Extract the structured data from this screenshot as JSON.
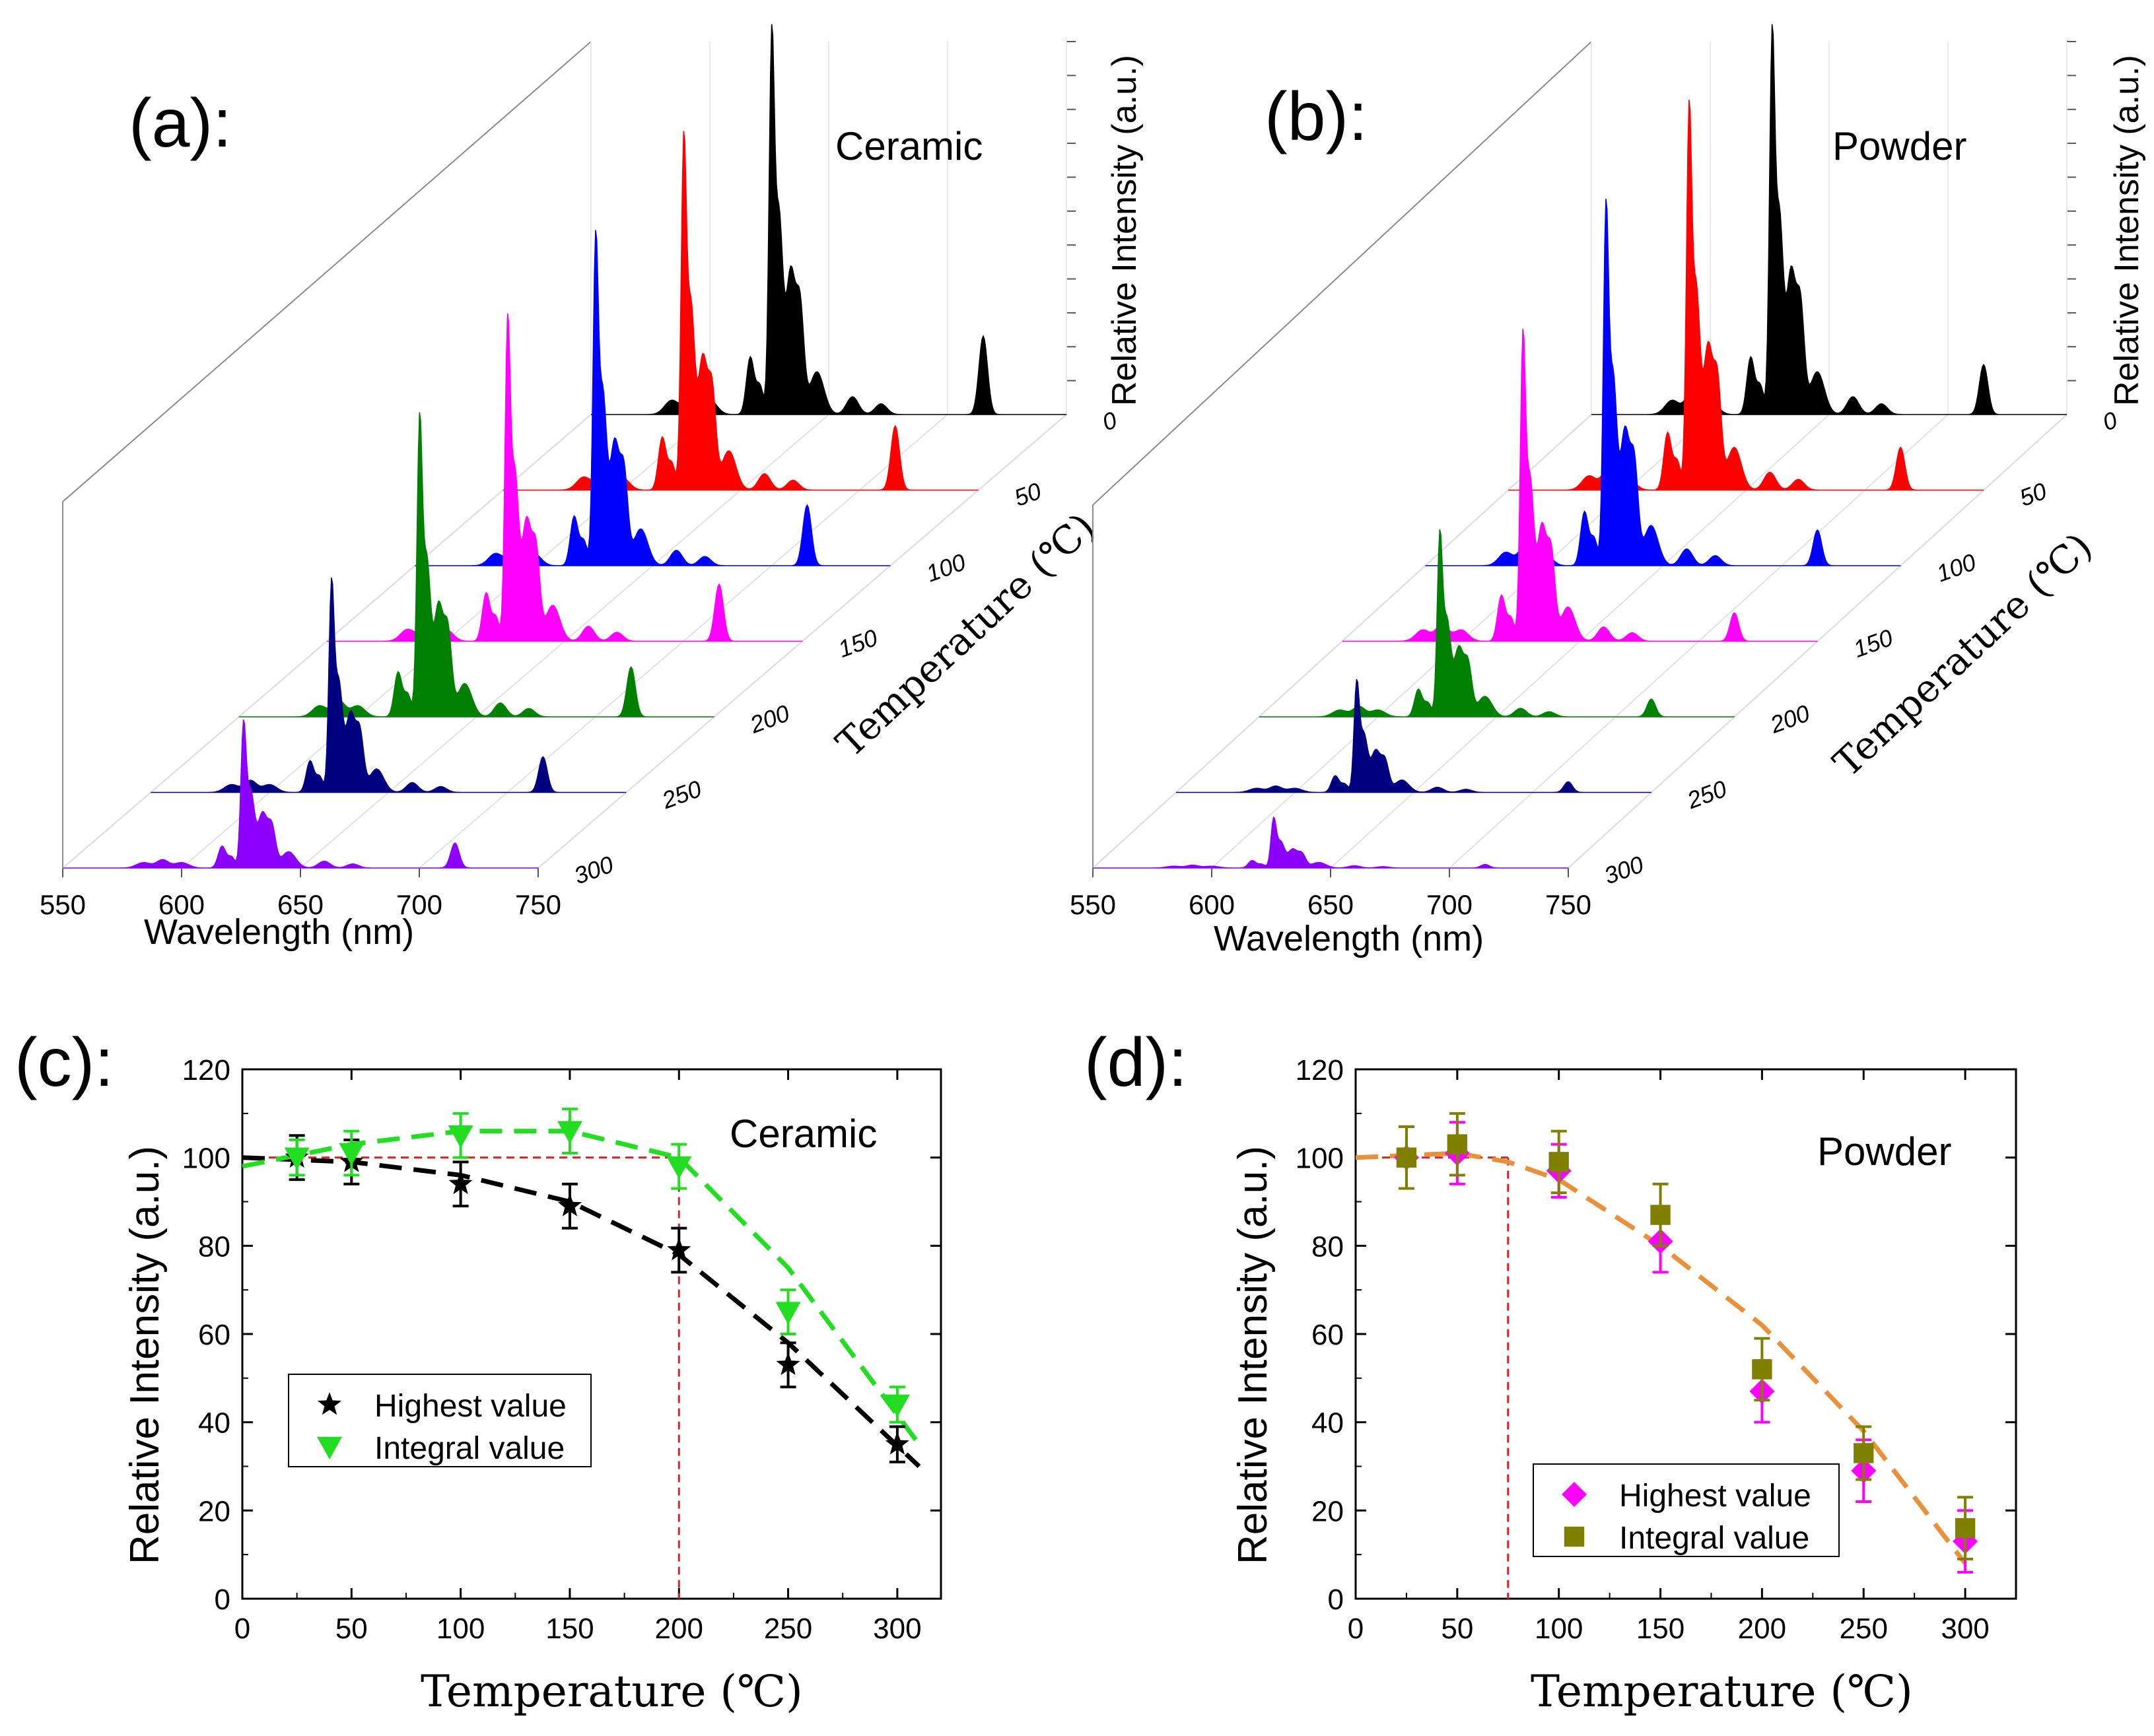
{
  "chart_data": [
    {
      "id": "a",
      "type": "waterfall-area",
      "panel_label": "(a):",
      "title": "Ceramic",
      "xlabel": "Wavelength (nm)",
      "ylabel": "Temperature (℃)",
      "zlabel": "Relative Intensity (a.u.)",
      "x_ticks": [
        "550",
        "600",
        "650",
        "700",
        "750"
      ],
      "xlim": [
        550,
        750
      ],
      "y_ticks": [
        "0",
        "50",
        "100",
        "150",
        "200",
        "250",
        "300"
      ],
      "series": [
        {
          "temperature": 25,
          "color": "#000000",
          "main_peak": 1.0,
          "integral_scale": 1.0,
          "red_peak": 0.22
        },
        {
          "temperature": 50,
          "color": "#ff0000",
          "main_peak": 0.92,
          "integral_scale": 0.98,
          "red_peak": 0.18
        },
        {
          "temperature": 100,
          "color": "#0000ff",
          "main_peak": 0.86,
          "integral_scale": 0.95,
          "red_peak": 0.17
        },
        {
          "temperature": 150,
          "color": "#ff00ff",
          "main_peak": 0.84,
          "integral_scale": 0.96,
          "red_peak": 0.16
        },
        {
          "temperature": 200,
          "color": "#008000",
          "main_peak": 0.78,
          "integral_scale": 0.88,
          "red_peak": 0.14
        },
        {
          "temperature": 250,
          "color": "#000080",
          "main_peak": 0.55,
          "integral_scale": 0.62,
          "red_peak": 0.1
        },
        {
          "temperature": 300,
          "color": "#8b00ff",
          "main_peak": 0.38,
          "integral_scale": 0.42,
          "red_peak": 0.07
        }
      ]
    },
    {
      "id": "b",
      "type": "waterfall-area",
      "panel_label": "(b):",
      "title": "Powder",
      "xlabel": "Wavelength (nm)",
      "ylabel": "Temperature (℃)",
      "zlabel": "Relative Intensity (a.u.)",
      "x_ticks": [
        "550",
        "600",
        "650",
        "700",
        "750"
      ],
      "xlim": [
        550,
        750
      ],
      "y_ticks": [
        "0",
        "50",
        "100",
        "150",
        "200",
        "250",
        "300"
      ],
      "series": [
        {
          "temperature": 25,
          "color": "#000000",
          "main_peak": 1.0,
          "integral_scale": 1.0,
          "red_peak": 0.14
        },
        {
          "temperature": 50,
          "color": "#ff0000",
          "main_peak": 1.0,
          "integral_scale": 1.0,
          "red_peak": 0.12
        },
        {
          "temperature": 100,
          "color": "#0000ff",
          "main_peak": 0.94,
          "integral_scale": 0.98,
          "red_peak": 0.1
        },
        {
          "temperature": 150,
          "color": "#ff00ff",
          "main_peak": 0.8,
          "integral_scale": 0.86,
          "red_peak": 0.08
        },
        {
          "temperature": 200,
          "color": "#008000",
          "main_peak": 0.48,
          "integral_scale": 0.52,
          "red_peak": 0.05
        },
        {
          "temperature": 250,
          "color": "#000080",
          "main_peak": 0.29,
          "integral_scale": 0.32,
          "red_peak": 0.03
        },
        {
          "temperature": 300,
          "color": "#8b00ff",
          "main_peak": 0.13,
          "integral_scale": 0.16,
          "red_peak": 0.01
        }
      ]
    },
    {
      "id": "c",
      "type": "scatter",
      "panel_label": "(c):",
      "title": "Ceramic",
      "xlabel": "Temperature (℃)",
      "ylabel": "Relative Intensity (a.u.)",
      "xlim": [
        0,
        320
      ],
      "ylim": [
        0,
        120
      ],
      "x_ticks": [
        "0",
        "50",
        "100",
        "150",
        "200",
        "250",
        "300"
      ],
      "y_ticks": [
        "0",
        "20",
        "40",
        "60",
        "80",
        "100",
        "120"
      ],
      "legend_position": "lower-left",
      "reference": {
        "y": 100,
        "x": 200
      },
      "series": [
        {
          "name": "Highest value",
          "marker": "star",
          "color": "#000000",
          "x": [
            25,
            50,
            100,
            150,
            200,
            250,
            300
          ],
          "y": [
            100,
            99,
            94,
            89,
            79,
            53,
            35
          ],
          "err": [
            5,
            5,
            5,
            5,
            5,
            5,
            4
          ],
          "fit_x": [
            0,
            50,
            100,
            150,
            200,
            250,
            310
          ],
          "fit_y": [
            100,
            99,
            96,
            90,
            78,
            58,
            30
          ]
        },
        {
          "name": "Integral value",
          "marker": "triangle-down",
          "color": "#22dd22",
          "x": [
            25,
            50,
            100,
            150,
            200,
            250,
            300
          ],
          "y": [
            100,
            101,
            105,
            106,
            98,
            65,
            44
          ],
          "err": [
            4,
            5,
            5,
            5,
            5,
            5,
            4
          ],
          "fit_x": [
            0,
            50,
            100,
            150,
            200,
            250,
            310
          ],
          "fit_y": [
            98,
            103,
            106,
            106,
            100,
            75,
            35
          ]
        }
      ]
    },
    {
      "id": "d",
      "type": "scatter",
      "panel_label": "(d):",
      "title": "Powder",
      "xlabel": "Temperature (℃)",
      "ylabel": "Relative Intensity (a.u.)",
      "xlim": [
        0,
        325
      ],
      "ylim": [
        0,
        120
      ],
      "x_ticks": [
        "0",
        "50",
        "100",
        "150",
        "200",
        "250",
        "300"
      ],
      "y_ticks": [
        "0",
        "20",
        "40",
        "60",
        "80",
        "100",
        "120"
      ],
      "legend_position": "lower-center",
      "reference": {
        "y": 100,
        "x": 75
      },
      "series": [
        {
          "name": "Highest value",
          "marker": "diamond",
          "color": "#ff00ff",
          "x": [
            25,
            50,
            100,
            150,
            200,
            250,
            300
          ],
          "y": [
            100,
            101,
            97,
            81,
            47,
            29,
            13
          ],
          "err": [
            7,
            7,
            6,
            7,
            7,
            7,
            7
          ],
          "fit_x": [
            0,
            50,
            75,
            100,
            150,
            200,
            250,
            300
          ],
          "fit_y": [
            100,
            101,
            99,
            95,
            80,
            62,
            38,
            8
          ]
        },
        {
          "name": "Integral value",
          "marker": "square",
          "color": "#808000",
          "x": [
            25,
            50,
            100,
            150,
            200,
            250,
            300
          ],
          "y": [
            100,
            103,
            99,
            87,
            52,
            33,
            16
          ],
          "err": [
            7,
            7,
            7,
            7,
            7,
            6,
            7
          ],
          "fit_x": [
            0,
            50,
            75,
            100,
            150,
            200,
            250,
            300
          ],
          "fit_y": [
            100,
            101,
            99,
            95,
            80,
            62,
            38,
            8
          ]
        }
      ]
    }
  ]
}
